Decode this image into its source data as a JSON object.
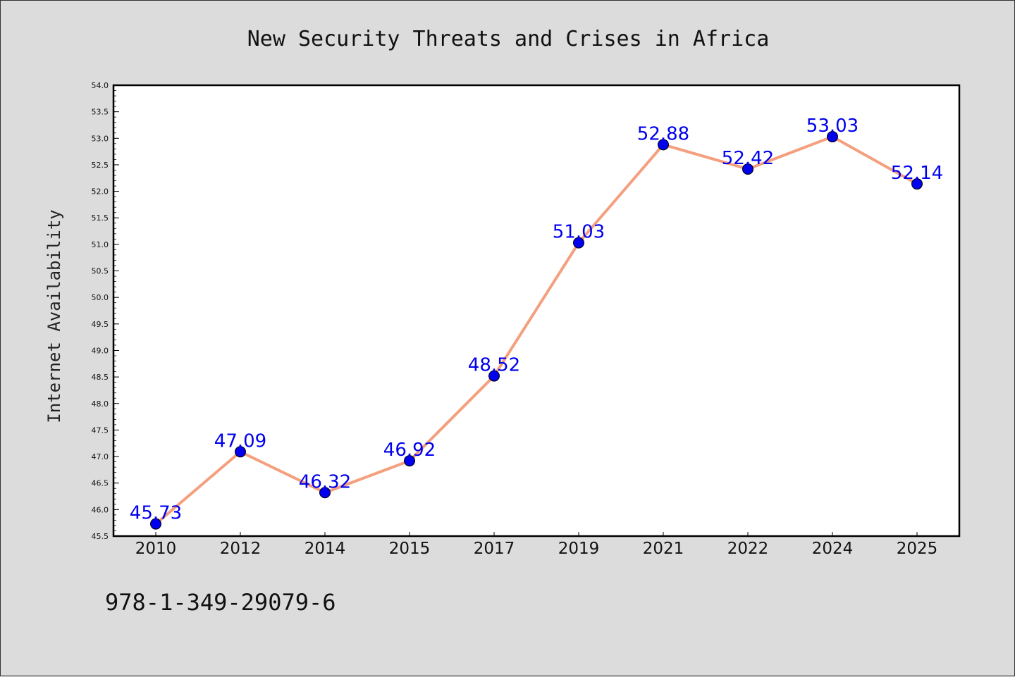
{
  "chart_data": {
    "type": "line",
    "title": "New Security Threats and Crises in Africa",
    "ylabel": "Internet Availability",
    "xlabel": "",
    "categories": [
      "2010",
      "2012",
      "2014",
      "2015",
      "2017",
      "2019",
      "2021",
      "2022",
      "2024",
      "2025"
    ],
    "series": [
      {
        "values": [
          45.73,
          47.09,
          46.32,
          46.92,
          48.52,
          51.03,
          52.88,
          52.42,
          53.03,
          52.14
        ],
        "labels": [
          "45.73",
          "47.09",
          "46.32",
          "46.92",
          "48.52",
          "51.03",
          "52.88",
          "52.42",
          "53.03",
          "52.14"
        ]
      }
    ],
    "ylim": [
      45.5,
      54.0
    ],
    "yticks": [
      "45.5",
      "46.0",
      "46.5",
      "47.0",
      "47.5",
      "48.0",
      "48.5",
      "49.0",
      "49.5",
      "50.0",
      "50.5",
      "51.0",
      "51.5",
      "52.0",
      "52.5",
      "53.0",
      "53.5",
      "54.0"
    ],
    "grid": false,
    "line_color": "#f4a07e",
    "marker_color": "#0000ee",
    "label_color": "#0000ee"
  },
  "footer": {
    "isbn": "978-1-349-29079-6"
  }
}
